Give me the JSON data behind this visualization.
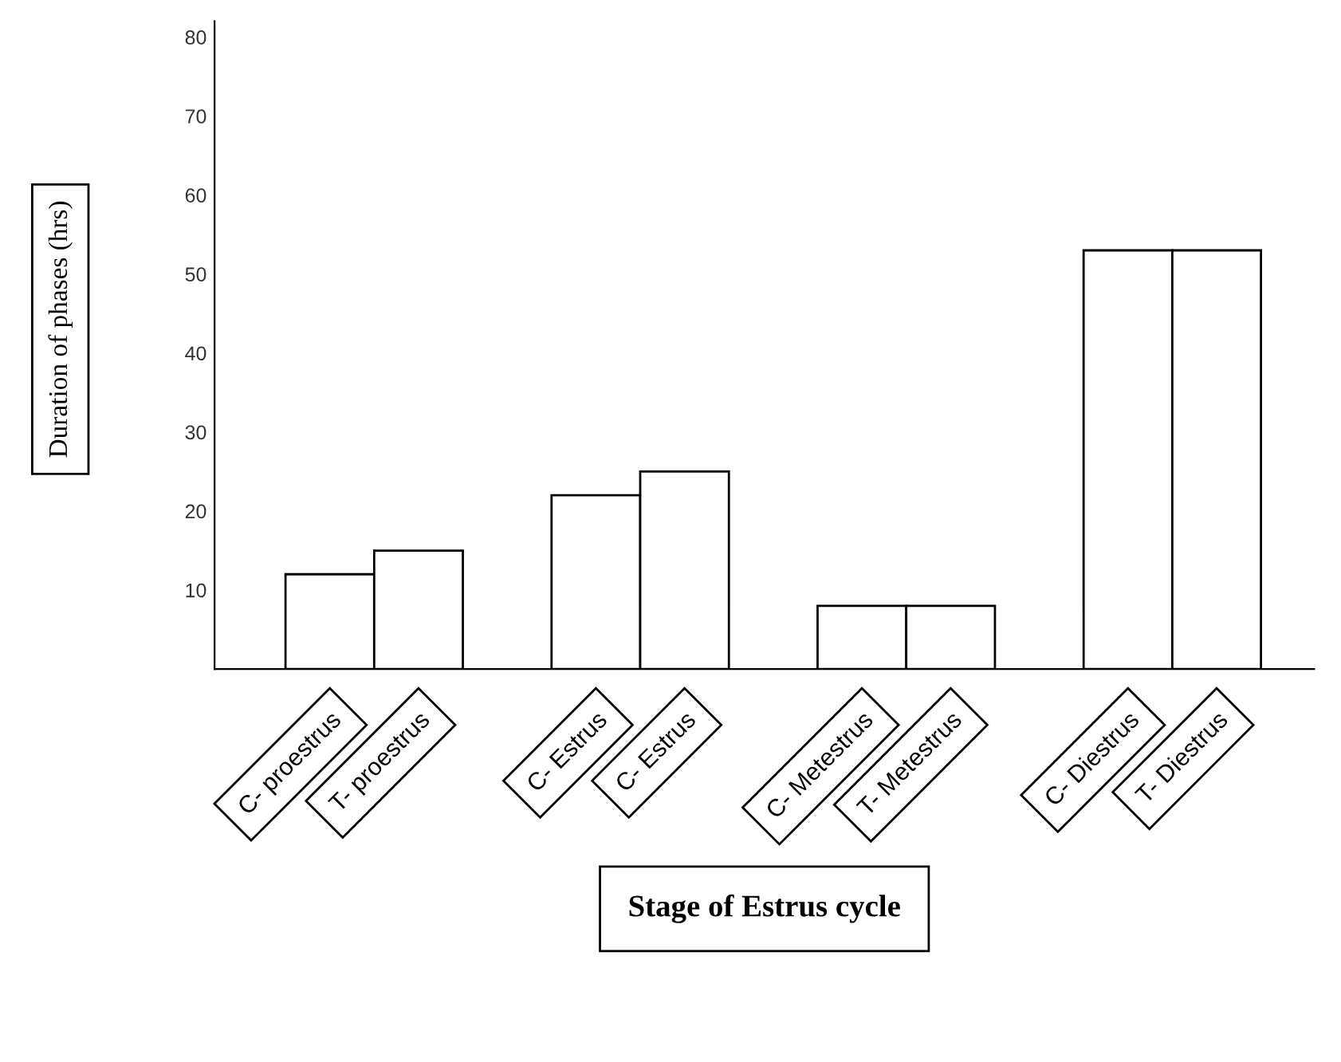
{
  "chart_data": {
    "type": "bar",
    "xlabel": "Stage of Estrus cycle",
    "ylabel": "Duration of phases (hrs)",
    "categories": [
      "C- proestrus",
      "T- proestrus",
      "C- Estrus",
      "C- Estrus",
      "C- Metestrus",
      "T- Metestrus",
      "C- Diestrus",
      "T- Diestrus"
    ],
    "values": [
      12,
      15,
      22,
      25,
      8,
      8,
      53,
      53
    ],
    "color": "#ffffff",
    "ylim": [
      0,
      82
    ],
    "yticks": [
      10,
      20,
      30,
      40,
      50,
      60,
      70,
      80
    ],
    "grid": false,
    "legend": false
  }
}
